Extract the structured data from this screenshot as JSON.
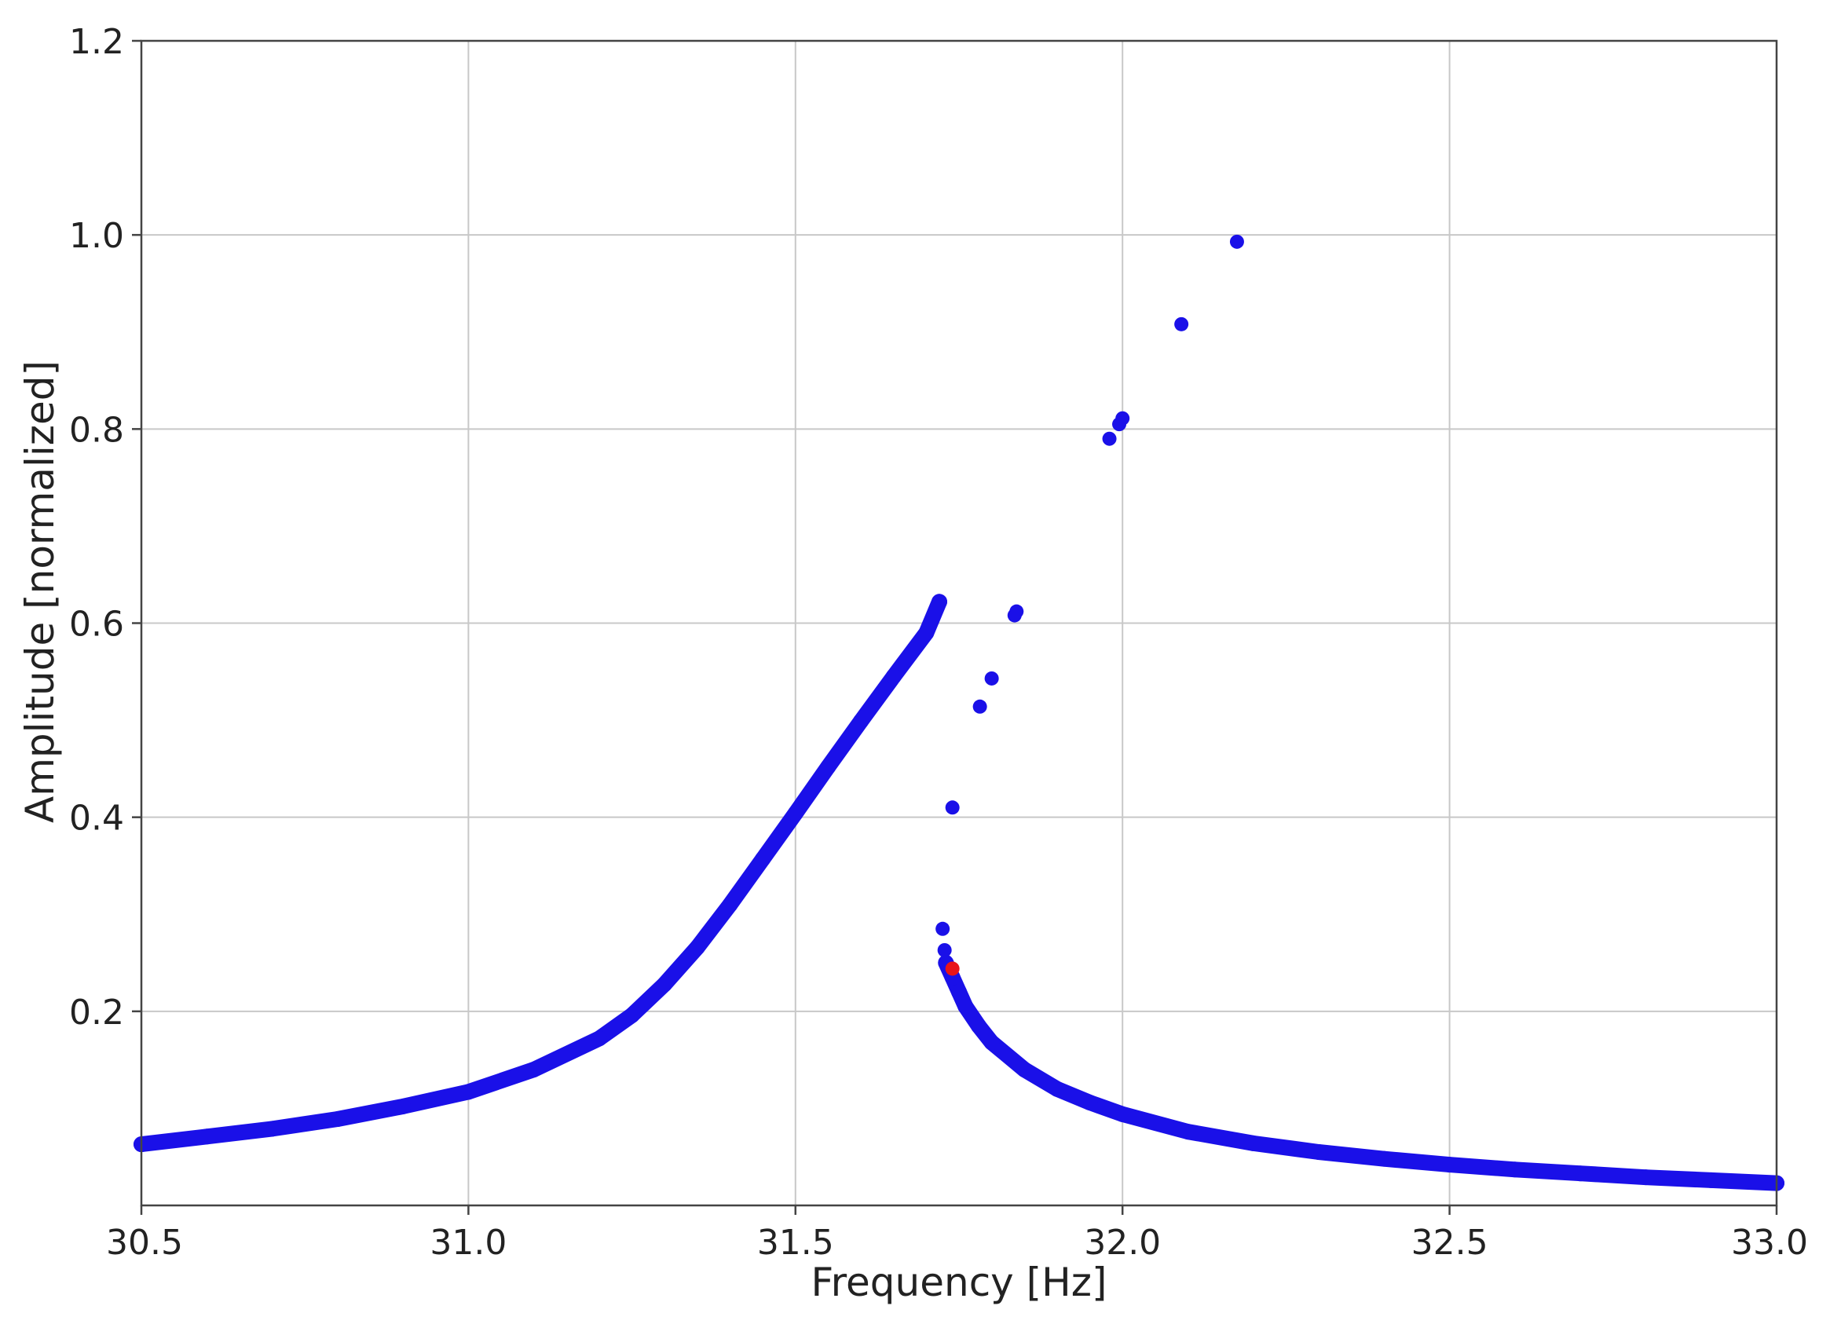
{
  "chart_data": {
    "type": "scatter",
    "title": "",
    "xlabel": "Frequency [Hz]",
    "ylabel": "Amplitude [normalized]",
    "xlim": [
      30.5,
      33.0
    ],
    "ylim": [
      0.0,
      1.2
    ],
    "x_ticks": [
      30.5,
      31.0,
      31.5,
      32.0,
      32.5,
      33.0
    ],
    "x_tick_labels": [
      "30.5",
      "31.0",
      "31.5",
      "32.0",
      "32.5",
      "33.0"
    ],
    "y_ticks": [
      0.2,
      0.4,
      0.6,
      0.8,
      1.0,
      1.2
    ],
    "y_tick_labels": [
      "0.2",
      "0.4",
      "0.6",
      "0.8",
      "1.0",
      "1.2"
    ],
    "grid": true,
    "legend": "none",
    "series": [
      {
        "color": "#1a10e8",
        "x": [
          30.5,
          30.6,
          30.7,
          30.8,
          30.9,
          31.0,
          31.1,
          31.2,
          31.25,
          31.3,
          31.35,
          31.4,
          31.45,
          31.5,
          31.55,
          31.6,
          31.65,
          31.7,
          31.72
        ],
        "y": [
          0.063,
          0.071,
          0.079,
          0.089,
          0.102,
          0.117,
          0.14,
          0.172,
          0.196,
          0.228,
          0.266,
          0.31,
          0.357,
          0.404,
          0.452,
          0.499,
          0.545,
          0.59,
          0.622
        ]
      },
      {
        "color": "#1a10e8",
        "x": [
          31.73,
          31.74,
          31.75,
          31.76,
          31.78,
          31.8,
          31.85,
          31.9,
          31.95,
          32.0,
          32.1,
          32.2,
          32.3,
          32.4,
          32.5,
          32.6,
          32.7,
          32.8,
          32.9,
          33.0
        ],
        "y": [
          0.25,
          0.235,
          0.22,
          0.205,
          0.185,
          0.168,
          0.14,
          0.12,
          0.106,
          0.094,
          0.076,
          0.064,
          0.055,
          0.048,
          0.042,
          0.037,
          0.033,
          0.029,
          0.026,
          0.023
        ]
      },
      {
        "color": "#1a10e8",
        "x": [
          31.725,
          31.728,
          31.74,
          31.782,
          31.8,
          31.835,
          31.838,
          31.98,
          31.995,
          32.0,
          32.09,
          32.175
        ],
        "y": [
          0.285,
          0.263,
          0.41,
          0.514,
          0.543,
          0.608,
          0.612,
          0.79,
          0.805,
          0.811,
          0.908,
          0.993
        ]
      },
      {
        "color": "#e8141a",
        "x": [
          31.74
        ],
        "y": [
          0.244
        ]
      }
    ]
  }
}
